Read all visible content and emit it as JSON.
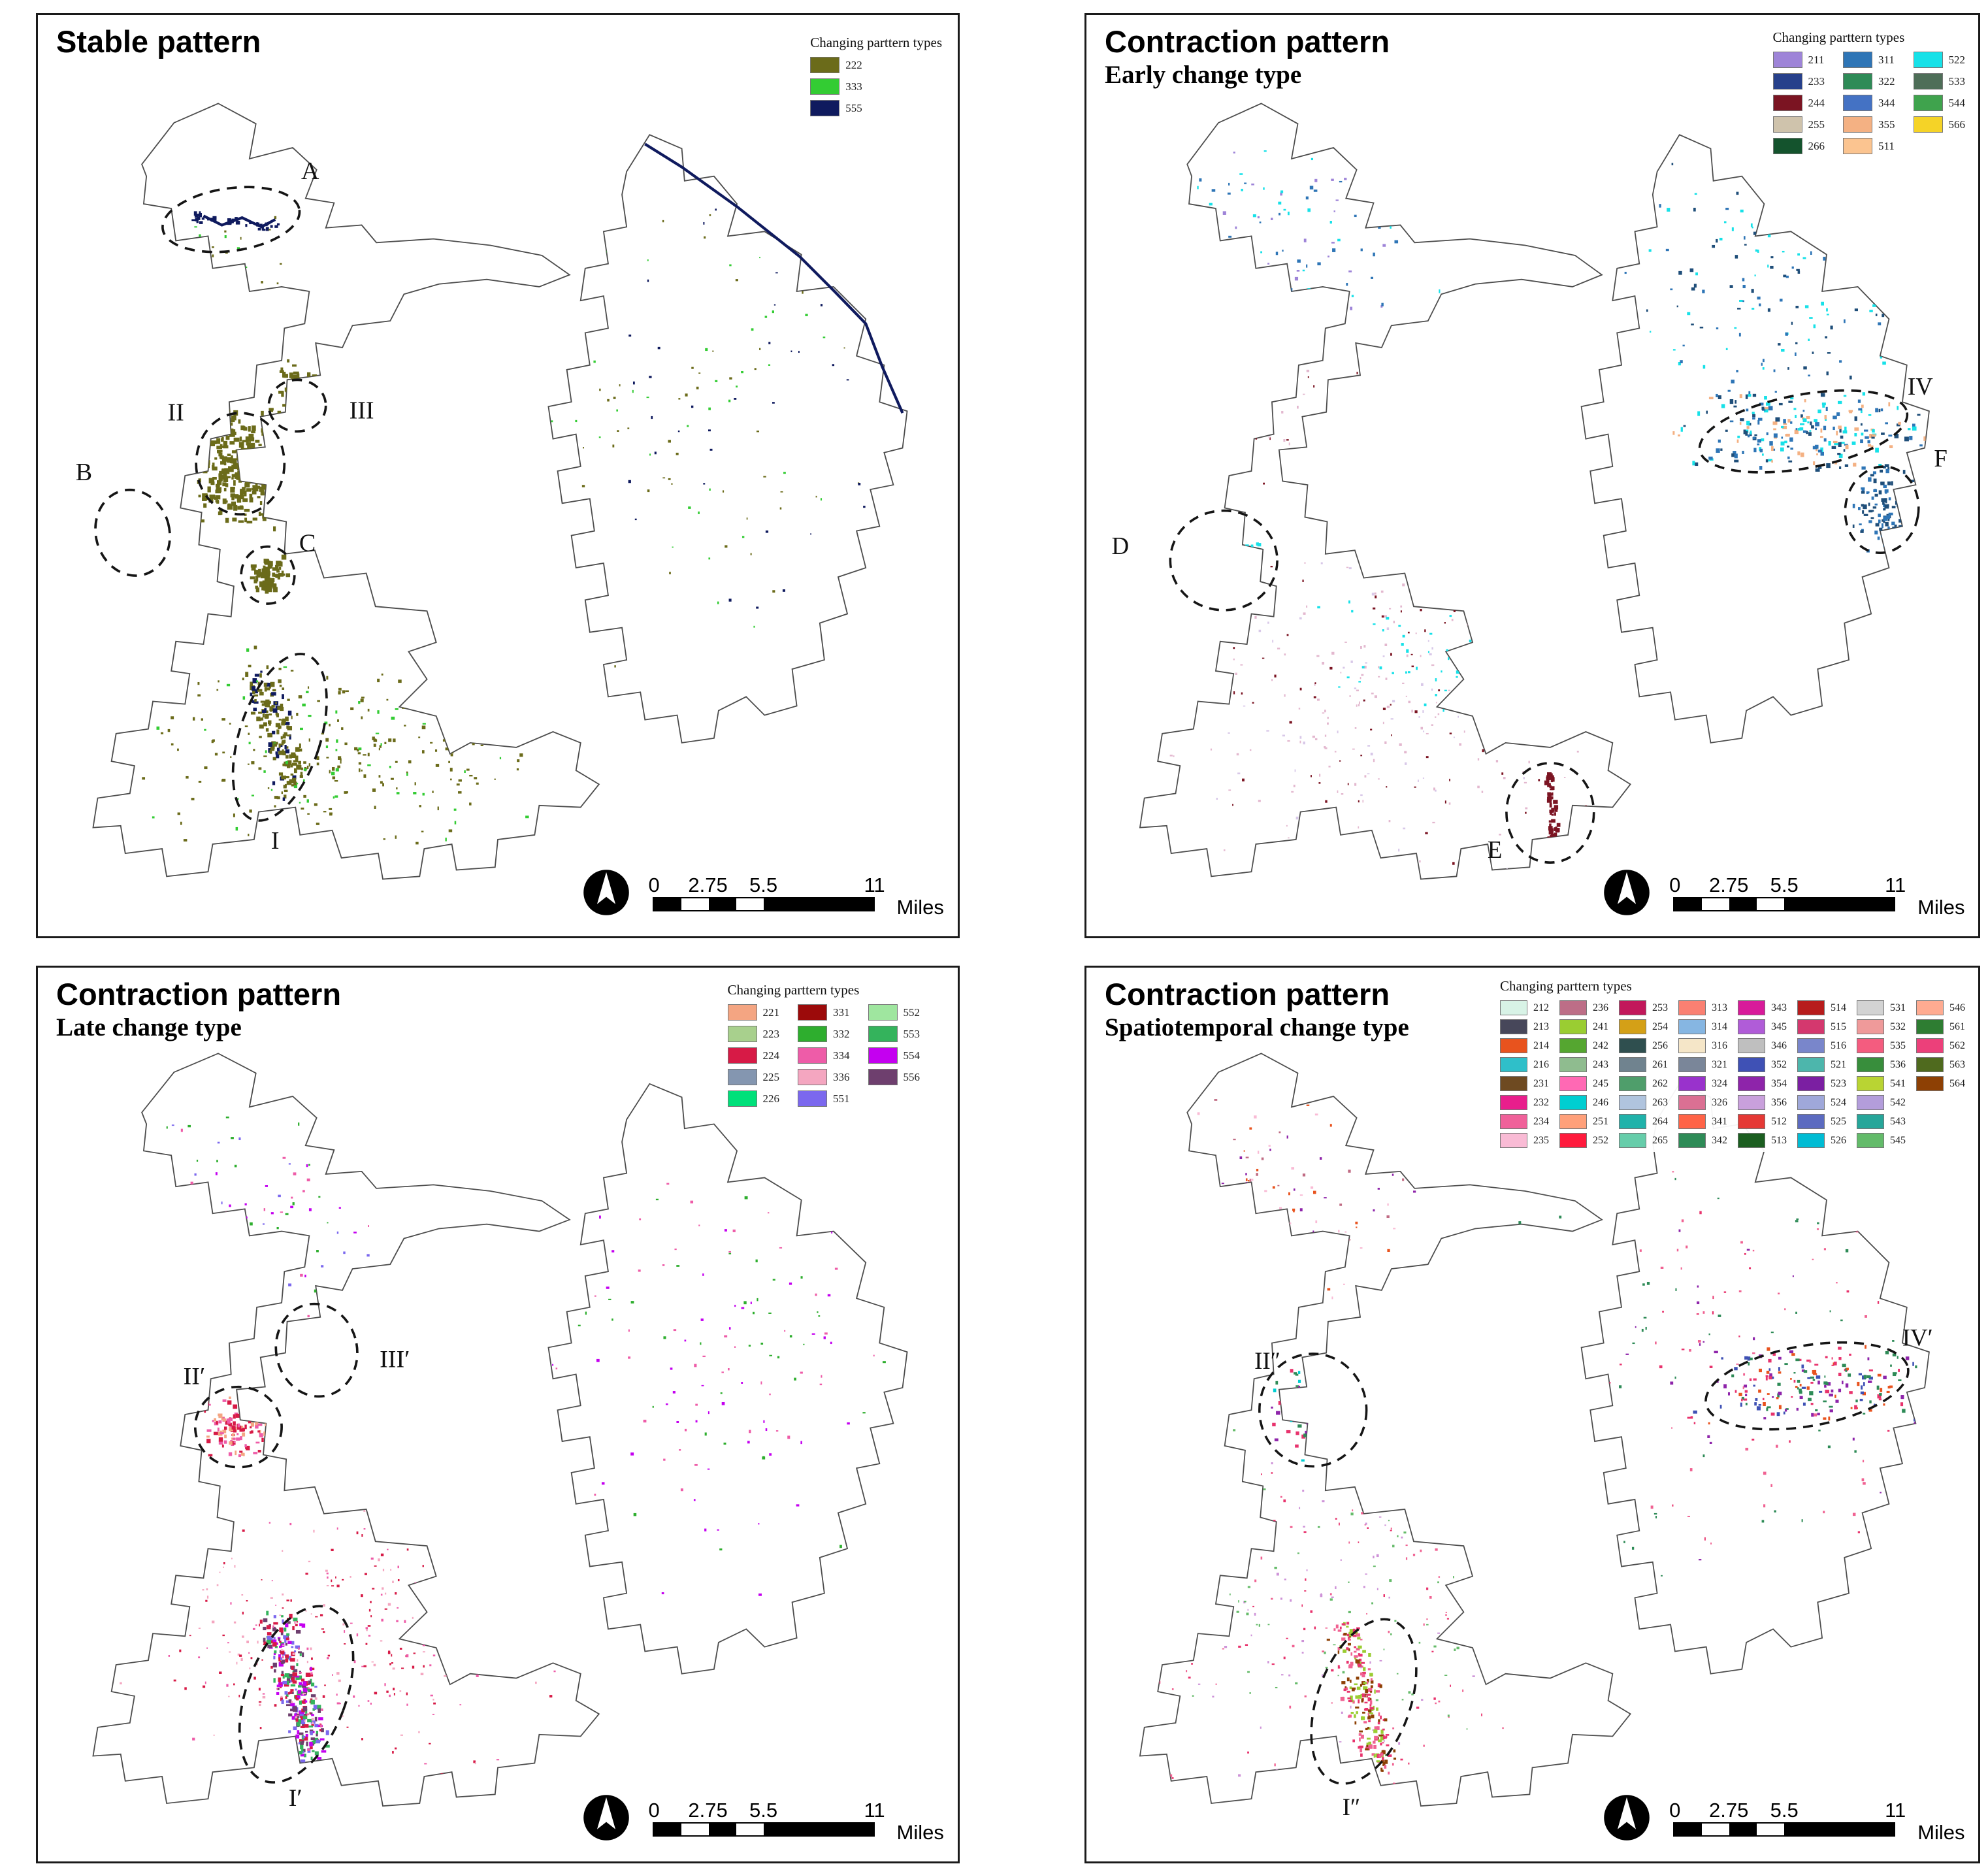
{
  "panels": [
    {
      "title": "Stable pattern",
      "subtitle": "",
      "legend": {
        "title": "Changing parttern types",
        "entries": [
          {
            "code": "222",
            "color": "#6B6B1A"
          },
          {
            "code": "333",
            "color": "#33CC33"
          },
          {
            "code": "555",
            "color": "#0F1A5E"
          }
        ]
      },
      "annotations": [
        {
          "label": "A"
        },
        {
          "label": "II"
        },
        {
          "label": "III"
        },
        {
          "label": "B"
        },
        {
          "label": "C"
        },
        {
          "label": "I"
        }
      ],
      "scalebar": {
        "labels": [
          "0",
          "2.75",
          "5.5",
          "11"
        ],
        "unit": "Miles"
      }
    },
    {
      "title": "Contraction pattern",
      "subtitle": "Early change type",
      "legend": {
        "title": "Changing parttern types",
        "entries": [
          {
            "code": "211",
            "color": "#9E84D8"
          },
          {
            "code": "233",
            "color": "#27408B"
          },
          {
            "code": "244",
            "color": "#7B1422"
          },
          {
            "code": "255",
            "color": "#CFC3AC"
          },
          {
            "code": "266",
            "color": "#14532D"
          },
          {
            "code": "311",
            "color": "#2E75B6"
          },
          {
            "code": "322",
            "color": "#2E8B57"
          },
          {
            "code": "344",
            "color": "#4472C4"
          },
          {
            "code": "355",
            "color": "#F4B183"
          },
          {
            "code": "511",
            "color": "#FBC490"
          },
          {
            "code": "522",
            "color": "#17E1E8"
          },
          {
            "code": "533",
            "color": "#4E6E58"
          },
          {
            "code": "544",
            "color": "#3FA34D"
          },
          {
            "code": "566",
            "color": "#F5D327"
          }
        ]
      },
      "annotations": [
        {
          "label": "IV"
        },
        {
          "label": "F"
        },
        {
          "label": "D"
        },
        {
          "label": "E"
        }
      ],
      "scalebar": {
        "labels": [
          "0",
          "2.75",
          "5.5",
          "11"
        ],
        "unit": "Miles"
      }
    },
    {
      "title": "Contraction pattern",
      "subtitle": "Late change type",
      "legend": {
        "title": "Changing parttern types",
        "entries": [
          {
            "code": "221",
            "color": "#F4A582"
          },
          {
            "code": "223",
            "color": "#A8D08D"
          },
          {
            "code": "224",
            "color": "#D71A46"
          },
          {
            "code": "225",
            "color": "#8496B0"
          },
          {
            "code": "226",
            "color": "#00E07A"
          },
          {
            "code": "331",
            "color": "#9C0A0A"
          },
          {
            "code": "332",
            "color": "#2EAE2E"
          },
          {
            "code": "334",
            "color": "#EE5CA8"
          },
          {
            "code": "336",
            "color": "#F4A6C0"
          },
          {
            "code": "551",
            "color": "#7B68EE"
          },
          {
            "code": "552",
            "color": "#9FE69F"
          },
          {
            "code": "553",
            "color": "#34B35C"
          },
          {
            "code": "554",
            "color": "#C400F0"
          },
          {
            "code": "556",
            "color": "#6E3F6E"
          }
        ]
      },
      "annotations": [
        {
          "label": "II′"
        },
        {
          "label": "III′"
        },
        {
          "label": "I′"
        }
      ],
      "scalebar": {
        "labels": [
          "0",
          "2.75",
          "5.5",
          "11"
        ],
        "unit": "Miles"
      }
    },
    {
      "title": "Contraction pattern",
      "subtitle": "Spatiotemporal change type",
      "legend": {
        "title": "Changing parttern types",
        "entries": [
          {
            "code": "212",
            "color": "#D8F3E6"
          },
          {
            "code": "213",
            "color": "#47475A"
          },
          {
            "code": "214",
            "color": "#E8531E"
          },
          {
            "code": "216",
            "color": "#2FBFC9"
          },
          {
            "code": "231",
            "color": "#6E4A21"
          },
          {
            "code": "232",
            "color": "#E81E8C"
          },
          {
            "code": "234",
            "color": "#F0619A"
          },
          {
            "code": "235",
            "color": "#F9BBD5"
          },
          {
            "code": "236",
            "color": "#BD6E87"
          },
          {
            "code": "241",
            "color": "#9ACD32"
          },
          {
            "code": "242",
            "color": "#55A630"
          },
          {
            "code": "243",
            "color": "#8FBC8F"
          },
          {
            "code": "245",
            "color": "#FF69B4"
          },
          {
            "code": "246",
            "color": "#00CED1"
          },
          {
            "code": "251",
            "color": "#FFA07A"
          },
          {
            "code": "252",
            "color": "#FF1A3C"
          },
          {
            "code": "253",
            "color": "#C2185B"
          },
          {
            "code": "254",
            "color": "#D4A017"
          },
          {
            "code": "256",
            "color": "#2F4F4F"
          },
          {
            "code": "261",
            "color": "#70838F"
          },
          {
            "code": "262",
            "color": "#4F9E6B"
          },
          {
            "code": "263",
            "color": "#B0C4DE"
          },
          {
            "code": "264",
            "color": "#20B2AA"
          },
          {
            "code": "265",
            "color": "#66CDAA"
          },
          {
            "code": "313",
            "color": "#FA8072"
          },
          {
            "code": "314",
            "color": "#86B6E2"
          },
          {
            "code": "316",
            "color": "#F5E6C8"
          },
          {
            "code": "321",
            "color": "#7A8699"
          },
          {
            "code": "324",
            "color": "#9932CC"
          },
          {
            "code": "326",
            "color": "#DB7093"
          },
          {
            "code": "341",
            "color": "#FF6347"
          },
          {
            "code": "342",
            "color": "#2E8B57"
          },
          {
            "code": "343",
            "color": "#D81B9A"
          },
          {
            "code": "345",
            "color": "#B05CD8"
          },
          {
            "code": "346",
            "color": "#BFBFBF"
          },
          {
            "code": "352",
            "color": "#3F51B5"
          },
          {
            "code": "354",
            "color": "#8E24AA"
          },
          {
            "code": "356",
            "color": "#C9A0DC"
          },
          {
            "code": "512",
            "color": "#E53935"
          },
          {
            "code": "513",
            "color": "#1B5E20"
          },
          {
            "code": "514",
            "color": "#B71C1C"
          },
          {
            "code": "515",
            "color": "#D4386E"
          },
          {
            "code": "516",
            "color": "#7986CB"
          },
          {
            "code": "521",
            "color": "#4DB6AC"
          },
          {
            "code": "523",
            "color": "#7B1FA2"
          },
          {
            "code": "524",
            "color": "#9FA8DA"
          },
          {
            "code": "525",
            "color": "#5C6BC0"
          },
          {
            "code": "526",
            "color": "#00BCD4"
          },
          {
            "code": "531",
            "color": "#D3D3D3"
          },
          {
            "code": "532",
            "color": "#EF9A9A"
          },
          {
            "code": "535",
            "color": "#F45C7F"
          },
          {
            "code": "536",
            "color": "#388E3C"
          },
          {
            "code": "541",
            "color": "#B9D433"
          },
          {
            "code": "542",
            "color": "#B39DDB"
          },
          {
            "code": "543",
            "color": "#26A69A"
          },
          {
            "code": "545",
            "color": "#63BB6A"
          },
          {
            "code": "546",
            "color": "#FFAB91"
          },
          {
            "code": "561",
            "color": "#2E7D32"
          },
          {
            "code": "562",
            "color": "#EC407A"
          },
          {
            "code": "563",
            "color": "#4F6A1E"
          },
          {
            "code": "564",
            "color": "#8D4004"
          }
        ]
      },
      "annotations": [
        {
          "label": "II″"
        },
        {
          "label": "IV′"
        },
        {
          "label": "I″"
        }
      ],
      "scalebar": {
        "labels": [
          "0",
          "2.75",
          "5.5",
          "11"
        ],
        "unit": "Miles"
      }
    }
  ]
}
